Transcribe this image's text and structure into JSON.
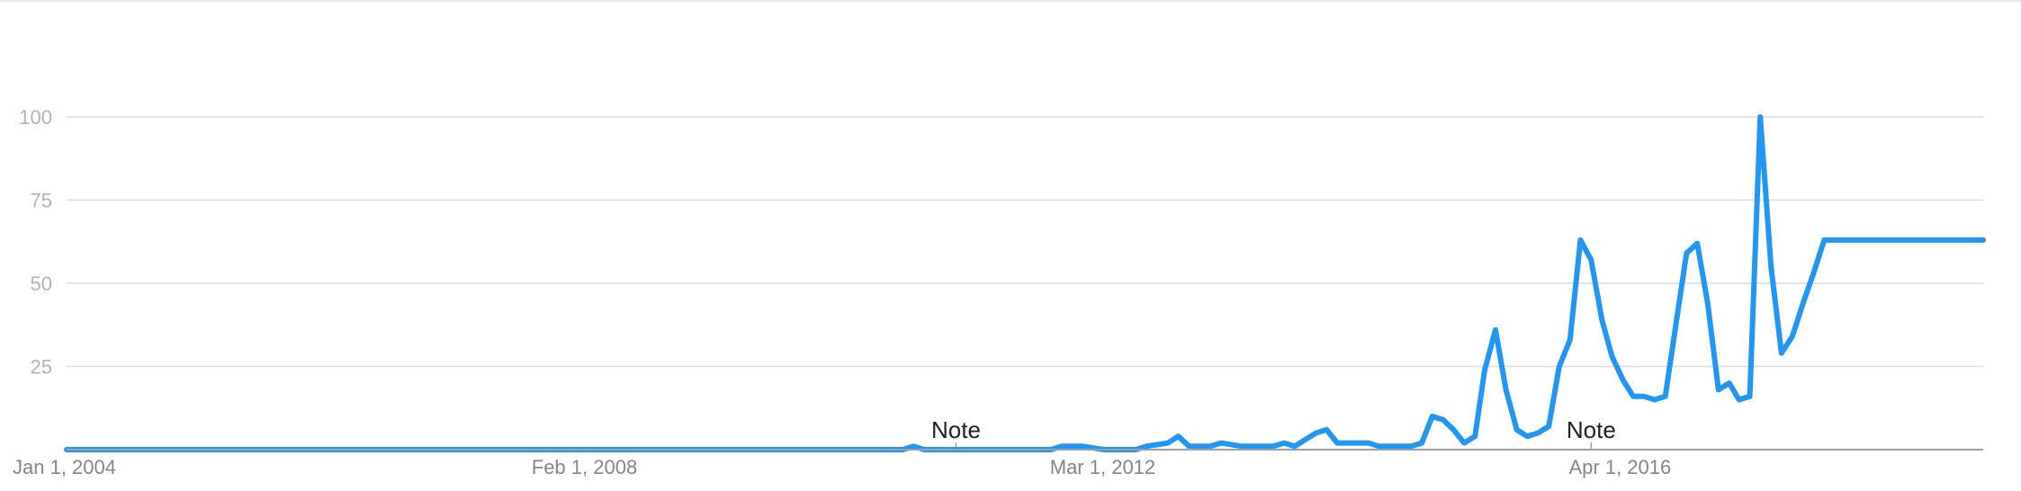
{
  "chart_data": {
    "type": "line",
    "title": "",
    "xlabel": "",
    "ylabel": "",
    "ylim": [
      0,
      100
    ],
    "yticks": [
      25,
      50,
      75,
      100
    ],
    "ytick_labels": [
      "25",
      "50",
      "75",
      "100"
    ],
    "x_range": [
      "2004-01-01",
      "2019-02-01"
    ],
    "xticks": [
      {
        "date": "2004-01-01",
        "label": "Jan 1, 2004"
      },
      {
        "date": "2008-02-01",
        "label": "Feb 1, 2008"
      },
      {
        "date": "2012-03-01",
        "label": "Mar 1, 2012"
      },
      {
        "date": "2016-04-01",
        "label": "Apr 1, 2016"
      }
    ],
    "grid": true,
    "annotations": [
      {
        "text": "Note",
        "date": "2011-01-01"
      },
      {
        "text": "Note",
        "date": "2016-01-01"
      }
    ],
    "colors": {
      "series": "#2196f3"
    },
    "series": [
      {
        "x": [
          "2004-01-01",
          "2008-06-01",
          "2010-08-01",
          "2010-09-01",
          "2010-10-01",
          "2011-10-01",
          "2011-11-01",
          "2012-01-01",
          "2012-03-01",
          "2012-06-01",
          "2012-07-01",
          "2012-09-01",
          "2012-10-01",
          "2012-11-01",
          "2013-01-01",
          "2013-02-01",
          "2013-04-01",
          "2013-05-01",
          "2013-06-01",
          "2013-07-01",
          "2013-08-01",
          "2013-09-01",
          "2013-10-01",
          "2013-11-01",
          "2013-12-01",
          "2014-01-01",
          "2014-02-01",
          "2014-03-01",
          "2014-04-01",
          "2014-05-01",
          "2014-06-01",
          "2014-07-01",
          "2014-08-01",
          "2014-09-01",
          "2014-10-01",
          "2014-11-01",
          "2014-12-01",
          "2015-01-01",
          "2015-02-01",
          "2015-03-01",
          "2015-04-01",
          "2015-05-01",
          "2015-06-01",
          "2015-07-01",
          "2015-08-01",
          "2015-09-01",
          "2015-10-01",
          "2015-11-01",
          "2015-12-01",
          "2016-01-01",
          "2016-02-01",
          "2016-03-01",
          "2016-04-01",
          "2016-05-01",
          "2016-06-01",
          "2016-07-01",
          "2016-08-01",
          "2016-09-01",
          "2016-10-01",
          "2016-11-01",
          "2016-12-01",
          "2017-01-01",
          "2017-02-01",
          "2017-03-01",
          "2017-04-01",
          "2017-05-01",
          "2017-06-01",
          "2017-07-01",
          "2017-08-01",
          "2017-09-01",
          "2017-10-01",
          "2017-11-01",
          "2017-12-01",
          "2018-01-01",
          "2018-02-01",
          "2018-03-01",
          "2018-04-01",
          "2018-05-01",
          "2018-06-01",
          "2018-07-01",
          "2018-08-01",
          "2018-09-01",
          "2018-10-01",
          "2018-11-01",
          "2018-12-01",
          "2019-01-01",
          "2019-02-01"
        ],
        "values": [
          0,
          0,
          0,
          1,
          0,
          0,
          1,
          1,
          0,
          0,
          1,
          2,
          4,
          1,
          1,
          2,
          1,
          1,
          1,
          1,
          2,
          1,
          3,
          5,
          6,
          2,
          2,
          2,
          2,
          1,
          1,
          1,
          1,
          2,
          10,
          9,
          6,
          2,
          4,
          24,
          36,
          18,
          6,
          4,
          5,
          7,
          25,
          33,
          63,
          57,
          39,
          28,
          21,
          16,
          16,
          15,
          16,
          38,
          59,
          62,
          44,
          18,
          20,
          15,
          16,
          100,
          55,
          29,
          34,
          44,
          53,
          63,
          63,
          63,
          63,
          63,
          63,
          63,
          63,
          63,
          63,
          63,
          63,
          63,
          63,
          63,
          63
        ]
      }
    ]
  }
}
